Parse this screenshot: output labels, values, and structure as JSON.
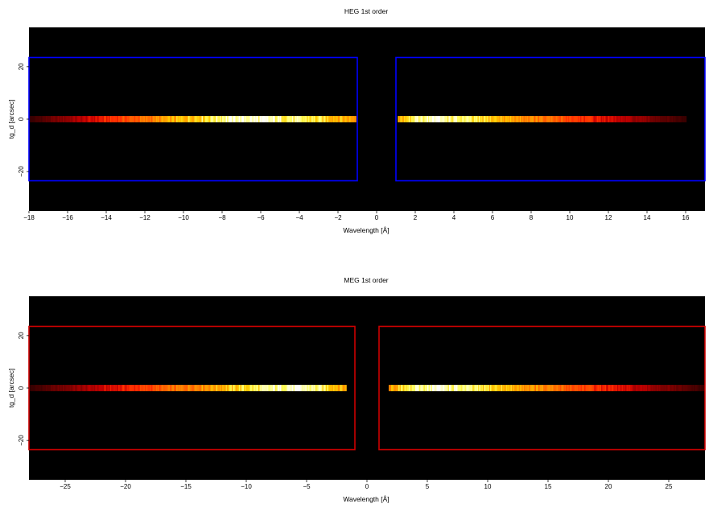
{
  "chart_data": [
    {
      "type": "heatmap",
      "title": "HEG 1st order",
      "xlabel": "Wavelength [Å]",
      "ylabel": "tg_d [arcsec]",
      "xlim": [
        -18,
        17
      ],
      "ylim": [
        -35,
        35
      ],
      "x_ticks": [
        -18,
        -16,
        -14,
        -12,
        -10,
        -8,
        -6,
        -4,
        -2,
        0,
        2,
        4,
        6,
        8,
        10,
        12,
        14,
        16
      ],
      "x_tick_labels": [
        "−18",
        "−16",
        "−14",
        "−12",
        "−10",
        "−8",
        "−6",
        "−4",
        "−2",
        "0",
        "2",
        "4",
        "6",
        "8",
        "10",
        "12",
        "14",
        "16"
      ],
      "y_ticks": [
        -20,
        0,
        20
      ],
      "y_tick_labels": [
        "−20",
        "0",
        "20"
      ],
      "background_color": "#000000",
      "colormap": "heat",
      "spectrum": {
        "y_center": 0,
        "y_half_width": 1.2,
        "segments": [
          {
            "x_start": -18,
            "x_end": -1.1,
            "peak_x": -7.5,
            "fade_to_edge_x": -18,
            "sharp_end_x": -1.1
          },
          {
            "x_start": 1.1,
            "x_end": 16,
            "peak_x": 3.0,
            "fade_to_edge_x": 16,
            "sharp_end_x": 1.1
          }
        ]
      },
      "regions": [
        {
          "x": [
            -18,
            -1
          ],
          "y": [
            -23.5,
            23.5
          ]
        },
        {
          "x": [
            1,
            17
          ],
          "y": [
            -23.5,
            23.5
          ]
        }
      ],
      "region_color": "#0000ff"
    },
    {
      "type": "heatmap",
      "title": "MEG 1st order",
      "xlabel": "Wavelength [Å]",
      "ylabel": "tg_d [arcsec]",
      "xlim": [
        -28,
        28
      ],
      "ylim": [
        -35,
        35
      ],
      "x_ticks": [
        -25,
        -20,
        -15,
        -10,
        -5,
        0,
        5,
        10,
        15,
        20,
        25
      ],
      "x_tick_labels": [
        "−25",
        "−20",
        "−15",
        "−10",
        "−5",
        "0",
        "5",
        "10",
        "15",
        "20",
        "25"
      ],
      "y_ticks": [
        -20,
        0,
        20
      ],
      "y_tick_labels": [
        "−20",
        "0",
        "20"
      ],
      "background_color": "#000000",
      "colormap": "heat",
      "spectrum": {
        "y_center": 0,
        "y_half_width": 1.2,
        "segments": [
          {
            "x_start": -28,
            "x_end": -1.7,
            "peak_x": -6.5,
            "fade_to_edge_x": -28,
            "sharp_end_x": -1.7
          },
          {
            "x_start": 1.8,
            "x_end": 28,
            "peak_x": 6.0,
            "fade_to_edge_x": 28,
            "sharp_end_x": 1.8
          }
        ]
      },
      "regions": [
        {
          "x": [
            -28,
            -1
          ],
          "y": [
            -23.5,
            23.5
          ]
        },
        {
          "x": [
            1,
            28
          ],
          "y": [
            -23.5,
            23.5
          ]
        }
      ],
      "region_color": "#cc0000"
    }
  ]
}
